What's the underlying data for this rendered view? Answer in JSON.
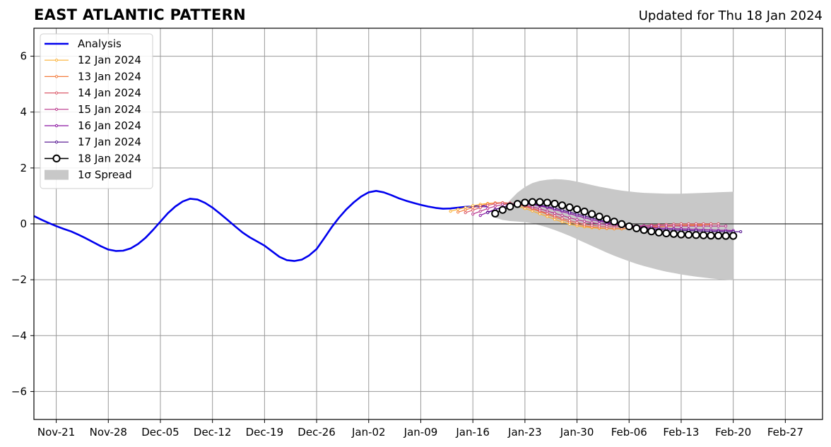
{
  "chart_data": {
    "type": "line",
    "title": "EAST ATLANTIC PATTERN",
    "subtitle": "Updated for Thu 18 Jan 2024",
    "xlabel": "",
    "ylabel": "",
    "xlim": [
      "2023-11-18",
      "2024-03-03"
    ],
    "ylim": [
      -7,
      7
    ],
    "grid": true,
    "legend_position": "top-left",
    "x_ticks": [
      "Nov-21",
      "Nov-28",
      "Dec-05",
      "Dec-12",
      "Dec-19",
      "Dec-26",
      "Jan-02",
      "Jan-09",
      "Jan-16",
      "Jan-23",
      "Jan-30",
      "Feb-06",
      "Feb-13",
      "Feb-20",
      "Feb-27"
    ],
    "x_tick_dates": [
      "2023-11-21",
      "2023-11-28",
      "2023-12-05",
      "2023-12-12",
      "2023-12-19",
      "2023-12-26",
      "2024-01-02",
      "2024-01-09",
      "2024-01-16",
      "2024-01-23",
      "2024-01-30",
      "2024-02-06",
      "2024-02-13",
      "2024-02-20",
      "2024-02-27"
    ],
    "y_ticks": [
      6,
      4,
      2,
      0,
      -2,
      -4,
      -6
    ],
    "y_tick_labels": [
      "6",
      "4",
      "2",
      "0",
      "−2",
      "−4",
      "−6"
    ],
    "analysis": {
      "name": "Analysis",
      "color": "#0000ee",
      "points": [
        [
          "2023-11-18",
          0.28
        ],
        [
          "2023-11-19",
          0.15
        ],
        [
          "2023-11-20",
          0.03
        ],
        [
          "2023-11-21",
          -0.08
        ],
        [
          "2023-11-22",
          -0.18
        ],
        [
          "2023-11-23",
          -0.27
        ],
        [
          "2023-11-24",
          -0.39
        ],
        [
          "2023-11-25",
          -0.52
        ],
        [
          "2023-11-26",
          -0.66
        ],
        [
          "2023-11-27",
          -0.8
        ],
        [
          "2023-11-28",
          -0.92
        ],
        [
          "2023-11-29",
          -0.97
        ],
        [
          "2023-11-30",
          -0.96
        ],
        [
          "2023-12-01",
          -0.88
        ],
        [
          "2023-12-02",
          -0.72
        ],
        [
          "2023-12-03",
          -0.5
        ],
        [
          "2023-12-04",
          -0.22
        ],
        [
          "2023-12-05",
          0.08
        ],
        [
          "2023-12-06",
          0.38
        ],
        [
          "2023-12-07",
          0.62
        ],
        [
          "2023-12-08",
          0.8
        ],
        [
          "2023-12-09",
          0.9
        ],
        [
          "2023-12-10",
          0.87
        ],
        [
          "2023-12-11",
          0.75
        ],
        [
          "2023-12-12",
          0.58
        ],
        [
          "2023-12-13",
          0.37
        ],
        [
          "2023-12-14",
          0.15
        ],
        [
          "2023-12-15",
          -0.08
        ],
        [
          "2023-12-16",
          -0.3
        ],
        [
          "2023-12-17",
          -0.48
        ],
        [
          "2023-12-18",
          -0.63
        ],
        [
          "2023-12-19",
          -0.78
        ],
        [
          "2023-12-20",
          -0.98
        ],
        [
          "2023-12-21",
          -1.18
        ],
        [
          "2023-12-22",
          -1.3
        ],
        [
          "2023-12-23",
          -1.33
        ],
        [
          "2023-12-24",
          -1.28
        ],
        [
          "2023-12-25",
          -1.13
        ],
        [
          "2023-12-26",
          -0.9
        ],
        [
          "2023-12-27",
          -0.52
        ],
        [
          "2023-12-28",
          -0.13
        ],
        [
          "2023-12-29",
          0.22
        ],
        [
          "2023-12-30",
          0.52
        ],
        [
          "2023-12-31",
          0.77
        ],
        [
          "2024-01-01",
          0.98
        ],
        [
          "2024-01-02",
          1.13
        ],
        [
          "2024-01-03",
          1.18
        ],
        [
          "2024-01-04",
          1.13
        ],
        [
          "2024-01-05",
          1.03
        ],
        [
          "2024-01-06",
          0.92
        ],
        [
          "2024-01-07",
          0.83
        ],
        [
          "2024-01-08",
          0.75
        ],
        [
          "2024-01-09",
          0.68
        ],
        [
          "2024-01-10",
          0.62
        ],
        [
          "2024-01-11",
          0.57
        ],
        [
          "2024-01-12",
          0.54
        ],
        [
          "2024-01-13",
          0.55
        ],
        [
          "2024-01-14",
          0.58
        ],
        [
          "2024-01-15",
          0.61
        ],
        [
          "2024-01-16",
          0.62
        ],
        [
          "2024-01-17",
          0.63
        ],
        [
          "2024-01-18",
          0.63
        ]
      ]
    },
    "forecasts": [
      {
        "name": "12 Jan 2024",
        "color": "#fbb032",
        "start": "2024-01-13",
        "values": [
          0.45,
          0.52,
          0.58,
          0.65,
          0.7,
          0.73,
          0.75,
          0.74,
          0.7,
          0.63,
          0.55,
          0.46,
          0.36,
          0.26,
          0.16,
          0.07,
          -0.01,
          -0.07,
          -0.11,
          -0.14,
          -0.16,
          -0.17,
          -0.18,
          -0.18,
          -0.17,
          -0.16,
          -0.14,
          -0.12,
          -0.1,
          -0.09,
          -0.08,
          -0.07,
          -0.06,
          -0.05,
          -0.05
        ]
      },
      {
        "name": "13 Jan 2024",
        "color": "#f37c3d",
        "start": "2024-01-14",
        "values": [
          0.42,
          0.5,
          0.58,
          0.65,
          0.71,
          0.75,
          0.76,
          0.74,
          0.69,
          0.62,
          0.53,
          0.44,
          0.34,
          0.24,
          0.15,
          0.06,
          -0.01,
          -0.07,
          -0.11,
          -0.14,
          -0.16,
          -0.17,
          -0.17,
          -0.16,
          -0.15,
          -0.13,
          -0.11,
          -0.09,
          -0.07,
          -0.06,
          -0.05,
          -0.04,
          -0.04,
          -0.03,
          -0.03
        ]
      },
      {
        "name": "14 Jan 2024",
        "color": "#db5a6a",
        "start": "2024-01-15",
        "values": [
          0.4,
          0.49,
          0.58,
          0.66,
          0.72,
          0.75,
          0.74,
          0.7,
          0.64,
          0.56,
          0.47,
          0.38,
          0.29,
          0.2,
          0.12,
          0.05,
          -0.01,
          -0.05,
          -0.08,
          -0.1,
          -0.11,
          -0.11,
          -0.1,
          -0.09,
          -0.07,
          -0.05,
          -0.03,
          -0.02,
          -0.01,
          0.0,
          0.0,
          0.0,
          0.0,
          0.0,
          0.0
        ]
      },
      {
        "name": "15 Jan 2024",
        "color": "#b83289",
        "start": "2024-01-16",
        "values": [
          0.35,
          0.45,
          0.55,
          0.63,
          0.69,
          0.72,
          0.71,
          0.67,
          0.61,
          0.54,
          0.46,
          0.38,
          0.3,
          0.22,
          0.15,
          0.09,
          0.04,
          0.0,
          -0.03,
          -0.05,
          -0.06,
          -0.07,
          -0.07,
          -0.07,
          -0.07,
          -0.07,
          -0.07,
          -0.07,
          -0.08,
          -0.08,
          -0.08,
          -0.08,
          -0.08,
          -0.08,
          -0.08
        ]
      },
      {
        "name": "16 Jan 2024",
        "color": "#8a14a0",
        "start": "2024-01-17",
        "values": [
          0.3,
          0.42,
          0.52,
          0.6,
          0.66,
          0.7,
          0.71,
          0.69,
          0.64,
          0.58,
          0.51,
          0.44,
          0.37,
          0.29,
          0.22,
          0.15,
          0.09,
          0.04,
          0.0,
          -0.04,
          -0.07,
          -0.09,
          -0.11,
          -0.13,
          -0.15,
          -0.16,
          -0.17,
          -0.18,
          -0.19,
          -0.2,
          -0.21,
          -0.22,
          -0.23,
          -0.23,
          -0.24
        ]
      },
      {
        "name": "17 Jan 2024",
        "color": "#4d0a8c",
        "start": "2024-01-18",
        "values": [
          0.4,
          0.51,
          0.6,
          0.67,
          0.71,
          0.72,
          0.71,
          0.67,
          0.62,
          0.56,
          0.49,
          0.42,
          0.35,
          0.28,
          0.21,
          0.14,
          0.07,
          0.01,
          -0.05,
          -0.09,
          -0.13,
          -0.16,
          -0.18,
          -0.2,
          -0.21,
          -0.22,
          -0.23,
          -0.24,
          -0.25,
          -0.26,
          -0.27,
          -0.27,
          -0.28,
          -0.28,
          -0.28
        ]
      },
      {
        "name": "18 Jan 2024",
        "color": "#000000",
        "start": "2024-01-19",
        "values": [
          0.37,
          0.5,
          0.62,
          0.71,
          0.76,
          0.78,
          0.78,
          0.76,
          0.72,
          0.66,
          0.59,
          0.52,
          0.44,
          0.35,
          0.26,
          0.17,
          0.08,
          -0.01,
          -0.09,
          -0.16,
          -0.22,
          -0.27,
          -0.31,
          -0.34,
          -0.36,
          -0.38,
          -0.39,
          -0.4,
          -0.41,
          -0.42,
          -0.42,
          -0.43,
          -0.43
        ]
      }
    ],
    "spread": {
      "name": "1σ Spread",
      "color": "#c8c8c8",
      "start": "2024-01-19",
      "upper": [
        0.22,
        0.5,
        0.85,
        1.12,
        1.32,
        1.46,
        1.54,
        1.58,
        1.6,
        1.59,
        1.56,
        1.51,
        1.45,
        1.39,
        1.33,
        1.28,
        1.23,
        1.19,
        1.16,
        1.13,
        1.11,
        1.1,
        1.09,
        1.08,
        1.08,
        1.08,
        1.09,
        1.1,
        1.11,
        1.12,
        1.13,
        1.14,
        1.15
      ],
      "lower": [
        0.22,
        0.14,
        0.1,
        0.08,
        0.06,
        0.02,
        -0.05,
        -0.13,
        -0.22,
        -0.32,
        -0.43,
        -0.55,
        -0.67,
        -0.79,
        -0.91,
        -1.03,
        -1.14,
        -1.24,
        -1.34,
        -1.43,
        -1.51,
        -1.58,
        -1.65,
        -1.71,
        -1.76,
        -1.81,
        -1.85,
        -1.89,
        -1.92,
        -1.95,
        -1.98,
        -2.0,
        -2.02
      ]
    }
  },
  "legend": {
    "analysis_label": "Analysis",
    "spread_label": "1σ Spread",
    "items": [
      "12 Jan 2024",
      "13 Jan 2024",
      "14 Jan 2024",
      "15 Jan 2024",
      "16 Jan 2024",
      "17 Jan 2024",
      "18 Jan 2024"
    ]
  }
}
